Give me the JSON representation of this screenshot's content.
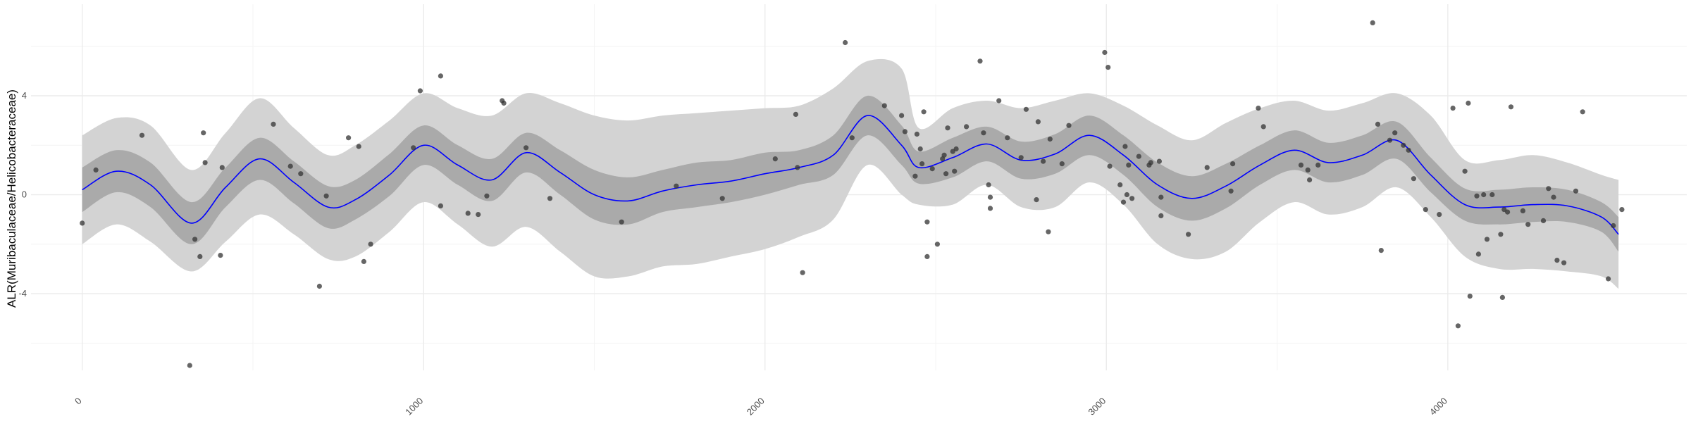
{
  "chart_data": {
    "type": "scatter",
    "title": "",
    "xlabel": "",
    "ylabel": "ALR(Muribaculaceae/Helicobacteraceae)",
    "xlim": [
      -150,
      4700
    ],
    "ylim": [
      -7.1,
      7.7
    ],
    "x_ticks": [
      0,
      1000,
      2000,
      3000,
      4000
    ],
    "x_tick_labels": [
      "0",
      "1000",
      "2000",
      "3000",
      "4000"
    ],
    "y_ticks": [
      -4,
      0,
      4
    ],
    "y_tick_labels": [
      "-4",
      "0",
      "4"
    ],
    "grid": true,
    "legend": "none",
    "colors": {
      "points": "#333333",
      "fit_line": "#0000ff",
      "inner_band": "#aaaaaa",
      "outer_band": "#d3d3d3",
      "grid_major": "#ebebeb",
      "grid_minor": "#f4f4f4"
    },
    "fit": {
      "x": [
        0,
        100,
        200,
        320,
        420,
        520,
        620,
        720,
        800,
        900,
        1000,
        1100,
        1200,
        1300,
        1400,
        1500,
        1600,
        1700,
        1800,
        1900,
        2000,
        2100,
        2200,
        2300,
        2400,
        2450,
        2550,
        2650,
        2750,
        2850,
        2950,
        3050,
        3150,
        3250,
        3350,
        3450,
        3550,
        3650,
        3750,
        3850,
        3950,
        4050,
        4150,
        4250,
        4350,
        4450,
        4500
      ],
      "y": [
        0.2,
        0.95,
        0.4,
        -1.15,
        0.3,
        1.45,
        0.5,
        -0.5,
        -0.2,
        0.8,
        2.0,
        1.2,
        0.6,
        1.7,
        0.9,
        0.0,
        -0.25,
        0.15,
        0.4,
        0.55,
        0.85,
        1.1,
        1.6,
        3.2,
        2.0,
        1.1,
        1.5,
        2.05,
        1.4,
        1.65,
        2.4,
        1.6,
        0.4,
        -0.15,
        0.35,
        1.2,
        1.8,
        1.3,
        1.6,
        2.2,
        0.8,
        -0.4,
        -0.5,
        -0.4,
        -0.45,
        -0.9,
        -1.6
      ],
      "inner_band": {
        "lower": [
          -0.7,
          0.1,
          -0.5,
          -2.0,
          -0.5,
          0.6,
          -0.35,
          -1.35,
          -1.0,
          -0.05,
          1.2,
          0.4,
          -0.25,
          0.9,
          0.0,
          -1.0,
          -1.2,
          -0.7,
          -0.5,
          -0.3,
          0.0,
          0.4,
          0.8,
          2.4,
          1.2,
          0.45,
          0.7,
          1.35,
          0.65,
          0.85,
          1.6,
          0.8,
          -0.5,
          -1.05,
          -0.55,
          0.4,
          1.0,
          0.5,
          0.8,
          1.45,
          0.1,
          -1.05,
          -1.2,
          -1.1,
          -1.1,
          -1.5,
          -2.3
        ],
        "upper": [
          1.1,
          1.8,
          1.3,
          -0.3,
          1.1,
          2.3,
          1.35,
          0.35,
          0.6,
          1.65,
          2.8,
          2.0,
          1.45,
          2.5,
          1.8,
          1.0,
          0.7,
          1.0,
          1.3,
          1.4,
          1.7,
          1.8,
          2.4,
          4.0,
          2.8,
          1.75,
          2.3,
          2.75,
          2.15,
          2.45,
          3.2,
          2.4,
          1.3,
          0.75,
          1.25,
          2.0,
          2.6,
          2.1,
          2.4,
          2.95,
          1.5,
          0.25,
          0.2,
          0.3,
          0.2,
          -0.3,
          -0.9
        ]
      },
      "outer_band": {
        "lower": [
          -2.0,
          -1.2,
          -1.9,
          -3.1,
          -1.9,
          -0.8,
          -1.6,
          -2.6,
          -2.5,
          -1.5,
          -0.3,
          -1.2,
          -2.1,
          -1.3,
          -2.3,
          -3.3,
          -3.3,
          -2.9,
          -2.8,
          -2.5,
          -2.2,
          -1.7,
          -1.0,
          1.2,
          0.0,
          -0.4,
          -0.4,
          0.4,
          -0.5,
          -0.5,
          0.5,
          -0.4,
          -2.0,
          -2.6,
          -2.3,
          -1.1,
          -0.3,
          -0.8,
          -0.5,
          0.3,
          -0.9,
          -2.5,
          -3.0,
          -3.0,
          -3.1,
          -3.3,
          -3.8
        ],
        "upper": [
          2.4,
          3.1,
          2.8,
          1.0,
          2.5,
          3.9,
          2.7,
          1.6,
          2.0,
          3.0,
          4.1,
          3.5,
          3.2,
          4.1,
          3.7,
          3.2,
          3.0,
          3.2,
          3.3,
          3.4,
          3.5,
          3.6,
          4.3,
          5.4,
          5.1,
          2.7,
          3.5,
          3.8,
          3.5,
          3.8,
          4.1,
          3.6,
          2.8,
          2.2,
          2.9,
          3.5,
          3.8,
          3.4,
          3.7,
          4.1,
          3.2,
          1.4,
          1.4,
          1.6,
          1.3,
          0.8,
          0.6
        ]
      }
    },
    "points": [
      {
        "x": 0,
        "y": -1.15
      },
      {
        "x": 40,
        "y": 1.0
      },
      {
        "x": 175,
        "y": 2.4
      },
      {
        "x": 315,
        "y": -6.9
      },
      {
        "x": 330,
        "y": -1.8
      },
      {
        "x": 345,
        "y": -2.5
      },
      {
        "x": 355,
        "y": 2.5
      },
      {
        "x": 360,
        "y": 1.3
      },
      {
        "x": 405,
        "y": -2.45
      },
      {
        "x": 410,
        "y": 1.1
      },
      {
        "x": 560,
        "y": 2.85
      },
      {
        "x": 610,
        "y": 1.15
      },
      {
        "x": 640,
        "y": 0.85
      },
      {
        "x": 695,
        "y": -3.7
      },
      {
        "x": 715,
        "y": -0.05
      },
      {
        "x": 780,
        "y": 2.3
      },
      {
        "x": 810,
        "y": 1.95
      },
      {
        "x": 825,
        "y": -2.7
      },
      {
        "x": 845,
        "y": -2.0
      },
      {
        "x": 970,
        "y": 1.9
      },
      {
        "x": 990,
        "y": 4.2
      },
      {
        "x": 1050,
        "y": -0.45
      },
      {
        "x": 1050,
        "y": 4.8
      },
      {
        "x": 1130,
        "y": -0.75
      },
      {
        "x": 1160,
        "y": -0.8
      },
      {
        "x": 1185,
        "y": -0.05
      },
      {
        "x": 1230,
        "y": 3.8
      },
      {
        "x": 1235,
        "y": 3.7
      },
      {
        "x": 1300,
        "y": 1.9
      },
      {
        "x": 1370,
        "y": -0.15
      },
      {
        "x": 1580,
        "y": -1.1
      },
      {
        "x": 1740,
        "y": 0.35
      },
      {
        "x": 1875,
        "y": -0.15
      },
      {
        "x": 2030,
        "y": 1.45
      },
      {
        "x": 2090,
        "y": 3.25
      },
      {
        "x": 2095,
        "y": 1.1
      },
      {
        "x": 2110,
        "y": -3.15
      },
      {
        "x": 2235,
        "y": 6.15
      },
      {
        "x": 2255,
        "y": 2.3
      },
      {
        "x": 2350,
        "y": 3.6
      },
      {
        "x": 2400,
        "y": 3.2
      },
      {
        "x": 2410,
        "y": 2.55
      },
      {
        "x": 2440,
        "y": 0.75
      },
      {
        "x": 2445,
        "y": 2.45
      },
      {
        "x": 2455,
        "y": 1.85
      },
      {
        "x": 2460,
        "y": 1.25
      },
      {
        "x": 2465,
        "y": 3.35
      },
      {
        "x": 2475,
        "y": -1.1
      },
      {
        "x": 2475,
        "y": -2.5
      },
      {
        "x": 2490,
        "y": 1.05
      },
      {
        "x": 2505,
        "y": -2.0
      },
      {
        "x": 2520,
        "y": 1.45
      },
      {
        "x": 2525,
        "y": 1.6
      },
      {
        "x": 2530,
        "y": 0.85
      },
      {
        "x": 2535,
        "y": 2.7
      },
      {
        "x": 2550,
        "y": 1.75
      },
      {
        "x": 2555,
        "y": 0.95
      },
      {
        "x": 2560,
        "y": 1.85
      },
      {
        "x": 2590,
        "y": 2.75
      },
      {
        "x": 2630,
        "y": 5.4
      },
      {
        "x": 2640,
        "y": 2.5
      },
      {
        "x": 2655,
        "y": 0.4
      },
      {
        "x": 2660,
        "y": -0.1
      },
      {
        "x": 2660,
        "y": -0.55
      },
      {
        "x": 2685,
        "y": 3.8
      },
      {
        "x": 2710,
        "y": 2.3
      },
      {
        "x": 2750,
        "y": 1.5
      },
      {
        "x": 2765,
        "y": 3.45
      },
      {
        "x": 2795,
        "y": -0.2
      },
      {
        "x": 2800,
        "y": 2.95
      },
      {
        "x": 2815,
        "y": 1.35
      },
      {
        "x": 2830,
        "y": -1.5
      },
      {
        "x": 2835,
        "y": 2.25
      },
      {
        "x": 2870,
        "y": 1.25
      },
      {
        "x": 2890,
        "y": 2.8
      },
      {
        "x": 2995,
        "y": 5.75
      },
      {
        "x": 3005,
        "y": 5.15
      },
      {
        "x": 3010,
        "y": 1.15
      },
      {
        "x": 3040,
        "y": 0.4
      },
      {
        "x": 3050,
        "y": -0.3
      },
      {
        "x": 3055,
        "y": 1.95
      },
      {
        "x": 3060,
        "y": 0.0
      },
      {
        "x": 3065,
        "y": 1.2
      },
      {
        "x": 3075,
        "y": -0.15
      },
      {
        "x": 3095,
        "y": 1.55
      },
      {
        "x": 3125,
        "y": 1.2
      },
      {
        "x": 3130,
        "y": 1.3
      },
      {
        "x": 3155,
        "y": 1.35
      },
      {
        "x": 3160,
        "y": -0.1
      },
      {
        "x": 3160,
        "y": -0.85
      },
      {
        "x": 3240,
        "y": -1.6
      },
      {
        "x": 3295,
        "y": 1.1
      },
      {
        "x": 3365,
        "y": 0.15
      },
      {
        "x": 3370,
        "y": 1.25
      },
      {
        "x": 3445,
        "y": 3.5
      },
      {
        "x": 3460,
        "y": 2.75
      },
      {
        "x": 3570,
        "y": 1.2
      },
      {
        "x": 3590,
        "y": 1.0
      },
      {
        "x": 3595,
        "y": 0.6
      },
      {
        "x": 3620,
        "y": 1.2
      },
      {
        "x": 3780,
        "y": 6.95
      },
      {
        "x": 3795,
        "y": 2.85
      },
      {
        "x": 3805,
        "y": -2.25
      },
      {
        "x": 3830,
        "y": 2.2
      },
      {
        "x": 3845,
        "y": 2.5
      },
      {
        "x": 3870,
        "y": 2.0
      },
      {
        "x": 3885,
        "y": 1.8
      },
      {
        "x": 3900,
        "y": 0.65
      },
      {
        "x": 3935,
        "y": -0.6
      },
      {
        "x": 3975,
        "y": -0.8
      },
      {
        "x": 4015,
        "y": 3.5
      },
      {
        "x": 4030,
        "y": -5.3
      },
      {
        "x": 4050,
        "y": 0.95
      },
      {
        "x": 4060,
        "y": 3.7
      },
      {
        "x": 4065,
        "y": -4.1
      },
      {
        "x": 4085,
        "y": -0.05
      },
      {
        "x": 4090,
        "y": -2.4
      },
      {
        "x": 4105,
        "y": 0.0
      },
      {
        "x": 4115,
        "y": -1.8
      },
      {
        "x": 4130,
        "y": 0.0
      },
      {
        "x": 4155,
        "y": -1.6
      },
      {
        "x": 4160,
        "y": -4.15
      },
      {
        "x": 4165,
        "y": -0.6
      },
      {
        "x": 4175,
        "y": -0.7
      },
      {
        "x": 4185,
        "y": 3.55
      },
      {
        "x": 4220,
        "y": -0.65
      },
      {
        "x": 4235,
        "y": -1.2
      },
      {
        "x": 4280,
        "y": -1.05
      },
      {
        "x": 4295,
        "y": 0.25
      },
      {
        "x": 4310,
        "y": -0.1
      },
      {
        "x": 4320,
        "y": -2.65
      },
      {
        "x": 4340,
        "y": -2.75
      },
      {
        "x": 4375,
        "y": 0.15
      },
      {
        "x": 4395,
        "y": 3.35
      },
      {
        "x": 4470,
        "y": -3.4
      },
      {
        "x": 4485,
        "y": -1.25
      },
      {
        "x": 4510,
        "y": -0.6
      }
    ]
  }
}
